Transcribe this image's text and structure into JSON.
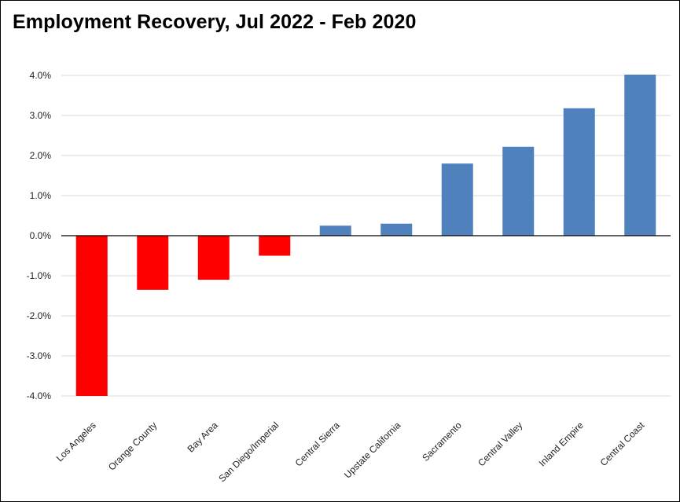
{
  "chart_data": {
    "type": "bar",
    "title": "Employment Recovery, Jul 2022 - Feb 2020",
    "xlabel": "",
    "ylabel": "",
    "ylim": [
      -4.0,
      4.0
    ],
    "y_ticks": [
      "4.0%",
      "3.0%",
      "2.0%",
      "1.0%",
      "0.0%",
      "-1.0%",
      "-2.0%",
      "-3.0%",
      "-4.0%"
    ],
    "grid": true,
    "legend": "none",
    "categories": [
      "Los Angeles",
      "Orange County",
      "Bay Area",
      "San Diego/Imperial",
      "Central Sierra",
      "Upstate California",
      "Sacramento",
      "Central Valley",
      "Inland Empire",
      "Central Coast"
    ],
    "values": [
      -4.0,
      -1.35,
      -1.1,
      -0.5,
      0.25,
      0.3,
      1.8,
      2.22,
      3.18,
      4.02
    ],
    "colors": {
      "negative": "#ff0000",
      "positive": "#4f81bd",
      "gridline": "#d9d9d9",
      "axis": "#000000"
    }
  }
}
